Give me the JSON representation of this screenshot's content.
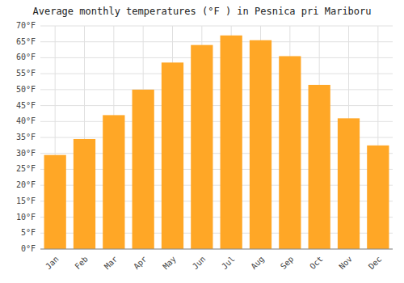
{
  "chart_data": {
    "type": "bar",
    "title": "Average monthly temperatures (°F ) in Pesnica pri Mariboru",
    "categories": [
      "Jan",
      "Feb",
      "Mar",
      "Apr",
      "May",
      "Jun",
      "Jul",
      "Aug",
      "Sep",
      "Oct",
      "Nov",
      "Dec"
    ],
    "values": [
      29.5,
      34.5,
      42.0,
      50.0,
      58.5,
      64.0,
      67.0,
      65.5,
      60.5,
      51.5,
      41.0,
      32.5
    ],
    "color": "#FFA726",
    "ylim": [
      0,
      70
    ],
    "yticks": [
      {
        "value": 0,
        "label": "0°F"
      },
      {
        "value": 5,
        "label": "5°F"
      },
      {
        "value": 10,
        "label": "10°F"
      },
      {
        "value": 15,
        "label": "15°F"
      },
      {
        "value": 20,
        "label": "20°F"
      },
      {
        "value": 25,
        "label": "25°F"
      },
      {
        "value": 30,
        "label": "30°F"
      },
      {
        "value": 35,
        "label": "35°F"
      },
      {
        "value": 40,
        "label": "40°F"
      },
      {
        "value": 45,
        "label": "45°F"
      },
      {
        "value": 50,
        "label": "50°F"
      },
      {
        "value": 55,
        "label": "55°F"
      },
      {
        "value": 60,
        "label": "60°F"
      },
      {
        "value": 65,
        "label": "65°F"
      },
      {
        "value": 70,
        "label": "70°F"
      }
    ],
    "grid": true
  }
}
